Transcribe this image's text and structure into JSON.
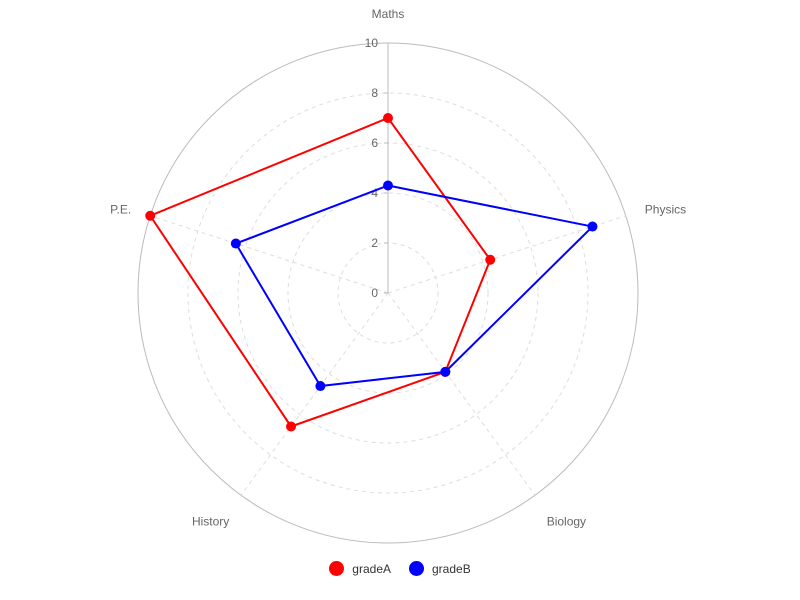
{
  "chart_data": {
    "type": "radar",
    "categories": [
      "Maths",
      "Physics",
      "Biology",
      "History",
      "P.E."
    ],
    "radial_ticks": [
      "0",
      "2",
      "4",
      "6",
      "8",
      "10"
    ],
    "rlim": [
      0,
      10
    ],
    "grid": true,
    "legend_position": "bottom",
    "series": [
      {
        "name": "gradeA",
        "values": [
          7,
          4.3,
          3.9,
          6.6,
          10
        ],
        "color": "#ff0000"
      },
      {
        "name": "gradeB",
        "values": [
          4.3,
          8.6,
          3.9,
          4.6,
          6.4
        ],
        "color": "#0000ff"
      }
    ],
    "colors": {
      "grid": "#dddddd",
      "outer_ring": "#bbbbbb",
      "text": "#666666"
    }
  }
}
